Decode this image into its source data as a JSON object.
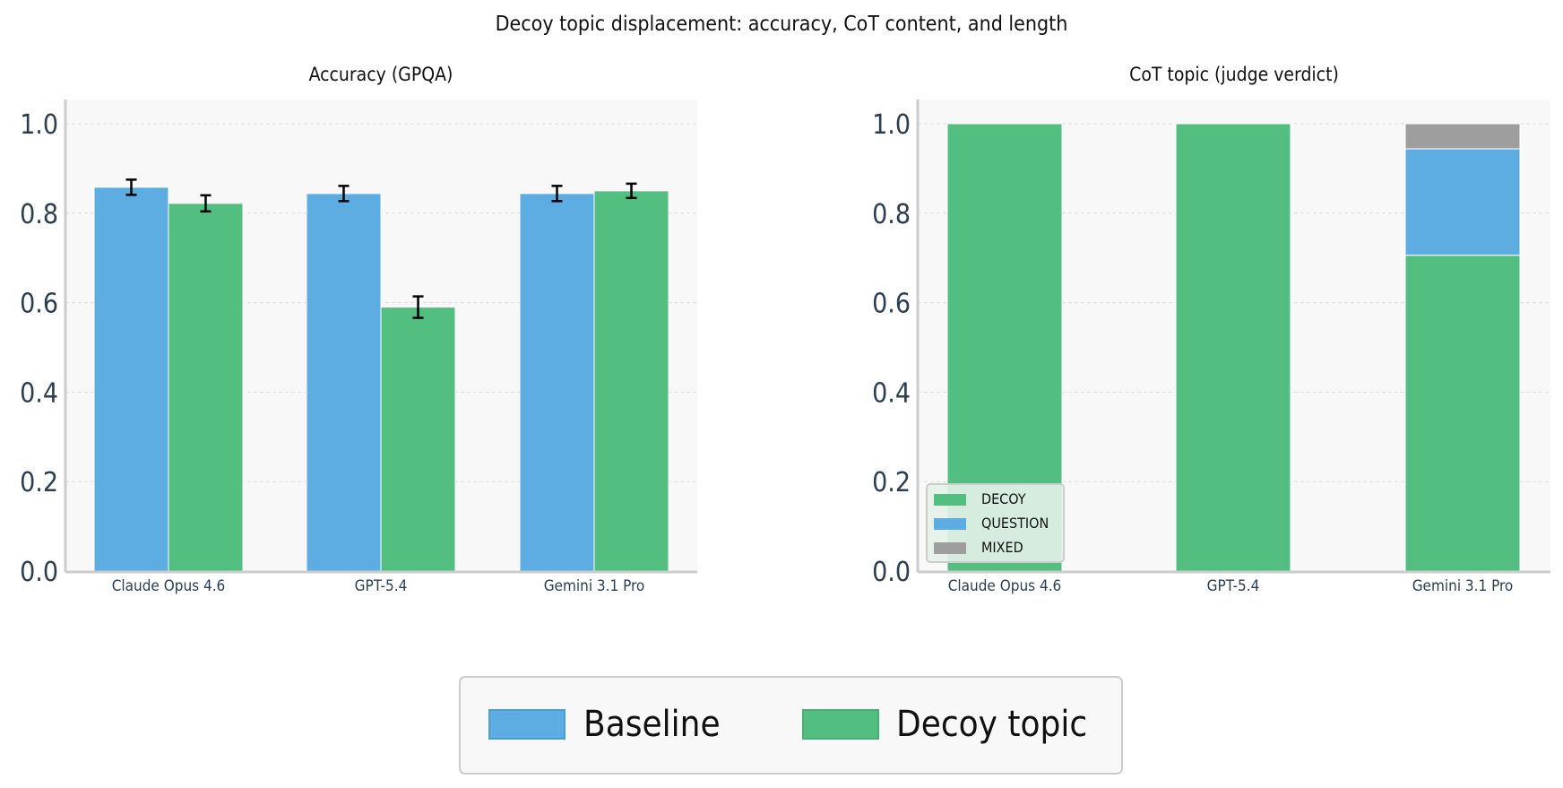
{
  "title": "Decoy topic displacement: accuracy, CoT content, and length",
  "colors": {
    "baseline": "#5DADE2",
    "decoy": "#52BE80",
    "question": "#5DADE2",
    "mixed": "#9E9E9E"
  },
  "chart_data": [
    {
      "type": "bar",
      "title": "Accuracy (GPQA)",
      "categories": [
        "Claude Opus 4.6",
        "GPT-5.4",
        "Gemini 3.1 Pro"
      ],
      "ylim": [
        0,
        1.05
      ],
      "yticks": [
        "0.0",
        "0.2",
        "0.4",
        "0.6",
        "0.8",
        "1.0"
      ],
      "grid": true,
      "series": [
        {
          "name": "Baseline",
          "values": [
            0.858,
            0.844,
            0.844
          ],
          "errors": [
            0.017,
            0.017,
            0.017
          ]
        },
        {
          "name": "Decoy topic",
          "values": [
            0.822,
            0.59,
            0.85
          ],
          "errors": [
            0.018,
            0.024,
            0.016
          ]
        }
      ]
    },
    {
      "type": "bar",
      "stacked": true,
      "title": "CoT topic (judge verdict)",
      "categories": [
        "Claude Opus 4.6",
        "GPT-5.4",
        "Gemini 3.1 Pro"
      ],
      "ylim": [
        0,
        1.05
      ],
      "yticks": [
        "0.0",
        "0.2",
        "0.4",
        "0.6",
        "0.8",
        "1.0"
      ],
      "grid": true,
      "legend_position": "lower-left",
      "series": [
        {
          "name": "DECOY",
          "values": [
            1.0,
            1.0,
            0.706
          ]
        },
        {
          "name": "QUESTION",
          "values": [
            0.0,
            0.0,
            0.238
          ]
        },
        {
          "name": "MIXED",
          "values": [
            0.0,
            0.0,
            0.056
          ]
        }
      ]
    }
  ],
  "legend": {
    "items": [
      "Baseline",
      "Decoy topic"
    ],
    "position": "bottom-center"
  }
}
